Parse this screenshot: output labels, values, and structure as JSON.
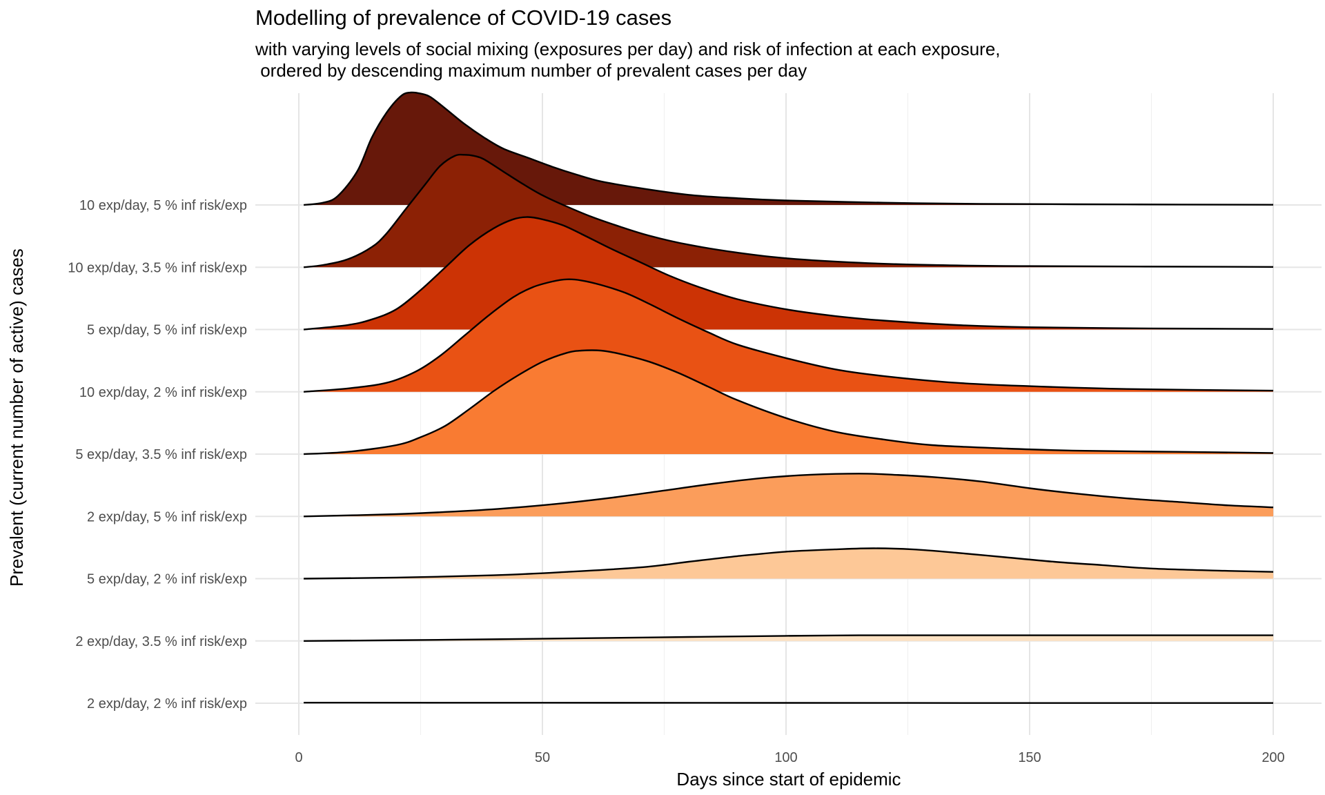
{
  "chart_data": {
    "type": "area",
    "title": "Modelling of prevalence of COVID-19 cases",
    "subtitle": "with varying levels of social mixing (exposures per day) and risk of infection at each exposure,\n ordered by descending maximum number of prevalent cases per day",
    "xlabel": "Days since start of epidemic",
    "ylabel": "Prevalent (current number of active) cases",
    "xlim": [
      0,
      200
    ],
    "x_ticks": [
      0,
      50,
      100,
      150,
      200
    ],
    "grid": true,
    "legend": "none",
    "series": [
      {
        "name": "10 exp/day, 5 % inf risk/exp",
        "color": "#67180a",
        "points": [
          [
            1,
            0
          ],
          [
            5,
            0.02
          ],
          [
            8,
            0.08
          ],
          [
            12,
            0.3
          ],
          [
            15,
            0.6
          ],
          [
            18,
            0.82
          ],
          [
            21,
            0.97
          ],
          [
            23,
            1.0
          ],
          [
            25,
            0.99
          ],
          [
            27,
            0.96
          ],
          [
            30,
            0.86
          ],
          [
            34,
            0.72
          ],
          [
            38,
            0.6
          ],
          [
            42,
            0.5
          ],
          [
            47,
            0.42
          ],
          [
            52,
            0.34
          ],
          [
            57,
            0.27
          ],
          [
            62,
            0.21
          ],
          [
            70,
            0.15
          ],
          [
            80,
            0.09
          ],
          [
            90,
            0.06
          ],
          [
            100,
            0.04
          ],
          [
            120,
            0.02
          ],
          [
            140,
            0.01
          ],
          [
            170,
            0.005
          ],
          [
            200,
            0.002
          ]
        ]
      },
      {
        "name": "10 exp/day, 3.5 % inf risk/exp",
        "color": "#8c2105",
        "points": [
          [
            1,
            0
          ],
          [
            5,
            0.02
          ],
          [
            10,
            0.07
          ],
          [
            15,
            0.18
          ],
          [
            18,
            0.3
          ],
          [
            22,
            0.52
          ],
          [
            26,
            0.74
          ],
          [
            29,
            0.9
          ],
          [
            32,
            0.99
          ],
          [
            34,
            1.0
          ],
          [
            36,
            0.99
          ],
          [
            38,
            0.96
          ],
          [
            42,
            0.85
          ],
          [
            46,
            0.74
          ],
          [
            50,
            0.64
          ],
          [
            55,
            0.54
          ],
          [
            60,
            0.45
          ],
          [
            66,
            0.36
          ],
          [
            72,
            0.28
          ],
          [
            80,
            0.2
          ],
          [
            90,
            0.13
          ],
          [
            100,
            0.08
          ],
          [
            115,
            0.04
          ],
          [
            130,
            0.02
          ],
          [
            150,
            0.01
          ],
          [
            200,
            0.003
          ]
        ]
      },
      {
        "name": "5 exp/day, 5 % inf risk/exp",
        "color": "#cc3305",
        "points": [
          [
            1,
            0
          ],
          [
            10,
            0.04
          ],
          [
            15,
            0.09
          ],
          [
            20,
            0.18
          ],
          [
            25,
            0.35
          ],
          [
            30,
            0.55
          ],
          [
            35,
            0.75
          ],
          [
            40,
            0.9
          ],
          [
            44,
            0.98
          ],
          [
            47,
            1.0
          ],
          [
            50,
            0.98
          ],
          [
            54,
            0.93
          ],
          [
            58,
            0.85
          ],
          [
            64,
            0.72
          ],
          [
            70,
            0.6
          ],
          [
            76,
            0.48
          ],
          [
            82,
            0.38
          ],
          [
            90,
            0.27
          ],
          [
            100,
            0.18
          ],
          [
            110,
            0.12
          ],
          [
            120,
            0.08
          ],
          [
            135,
            0.04
          ],
          [
            150,
            0.02
          ],
          [
            175,
            0.01
          ],
          [
            200,
            0.005
          ]
        ]
      },
      {
        "name": "10 exp/day, 2 % inf risk/exp",
        "color": "#e95214",
        "points": [
          [
            1,
            0
          ],
          [
            10,
            0.03
          ],
          [
            18,
            0.08
          ],
          [
            24,
            0.18
          ],
          [
            29,
            0.32
          ],
          [
            34,
            0.5
          ],
          [
            39,
            0.68
          ],
          [
            44,
            0.84
          ],
          [
            48,
            0.93
          ],
          [
            52,
            0.98
          ],
          [
            55,
            1.0
          ],
          [
            58,
            0.99
          ],
          [
            62,
            0.95
          ],
          [
            67,
            0.88
          ],
          [
            72,
            0.78
          ],
          [
            78,
            0.65
          ],
          [
            84,
            0.53
          ],
          [
            90,
            0.42
          ],
          [
            100,
            0.3
          ],
          [
            110,
            0.2
          ],
          [
            120,
            0.14
          ],
          [
            135,
            0.08
          ],
          [
            150,
            0.05
          ],
          [
            170,
            0.025
          ],
          [
            200,
            0.01
          ]
        ]
      },
      {
        "name": "5 exp/day, 3.5 % inf risk/exp",
        "color": "#f97b32",
        "points": [
          [
            1,
            0
          ],
          [
            10,
            0.02
          ],
          [
            20,
            0.08
          ],
          [
            25,
            0.15
          ],
          [
            30,
            0.25
          ],
          [
            35,
            0.4
          ],
          [
            40,
            0.56
          ],
          [
            45,
            0.7
          ],
          [
            50,
            0.82
          ],
          [
            55,
            0.9
          ],
          [
            58,
            0.92
          ],
          [
            62,
            0.92
          ],
          [
            66,
            0.89
          ],
          [
            72,
            0.82
          ],
          [
            78,
            0.72
          ],
          [
            84,
            0.6
          ],
          [
            90,
            0.48
          ],
          [
            100,
            0.32
          ],
          [
            110,
            0.2
          ],
          [
            120,
            0.13
          ],
          [
            130,
            0.08
          ],
          [
            145,
            0.05
          ],
          [
            160,
            0.03
          ],
          [
            180,
            0.02
          ],
          [
            200,
            0.01
          ]
        ]
      },
      {
        "name": "2 exp/day, 5 % inf risk/exp",
        "color": "#fb9d5b",
        "points": [
          [
            1,
            0
          ],
          [
            20,
            0.02
          ],
          [
            35,
            0.05
          ],
          [
            45,
            0.08
          ],
          [
            55,
            0.12
          ],
          [
            65,
            0.17
          ],
          [
            75,
            0.23
          ],
          [
            85,
            0.29
          ],
          [
            95,
            0.34
          ],
          [
            105,
            0.37
          ],
          [
            115,
            0.38
          ],
          [
            122,
            0.37
          ],
          [
            130,
            0.35
          ],
          [
            140,
            0.31
          ],
          [
            150,
            0.25
          ],
          [
            160,
            0.2
          ],
          [
            170,
            0.16
          ],
          [
            180,
            0.13
          ],
          [
            190,
            0.1
          ],
          [
            200,
            0.08
          ]
        ]
      },
      {
        "name": "5 exp/day, 2 % inf risk/exp",
        "color": "#fdc897",
        "points": [
          [
            1,
            0
          ],
          [
            20,
            0.01
          ],
          [
            40,
            0.03
          ],
          [
            55,
            0.06
          ],
          [
            70,
            0.1
          ],
          [
            80,
            0.15
          ],
          [
            90,
            0.2
          ],
          [
            100,
            0.24
          ],
          [
            110,
            0.26
          ],
          [
            118,
            0.27
          ],
          [
            126,
            0.26
          ],
          [
            135,
            0.23
          ],
          [
            145,
            0.19
          ],
          [
            155,
            0.15
          ],
          [
            165,
            0.12
          ],
          [
            175,
            0.09
          ],
          [
            190,
            0.07
          ],
          [
            200,
            0.06
          ]
        ]
      },
      {
        "name": "2 exp/day, 3.5 % inf risk/exp",
        "color": "#fde1c2",
        "points": [
          [
            1,
            0
          ],
          [
            30,
            0.01
          ],
          [
            60,
            0.025
          ],
          [
            80,
            0.035
          ],
          [
            100,
            0.045
          ],
          [
            115,
            0.05
          ],
          [
            130,
            0.05
          ],
          [
            150,
            0.05
          ],
          [
            170,
            0.05
          ],
          [
            185,
            0.05
          ],
          [
            200,
            0.05
          ]
        ]
      },
      {
        "name": "2 exp/day, 2 % inf risk/exp",
        "color": "#fff3e6",
        "points": [
          [
            1,
            0.005
          ],
          [
            50,
            0.004
          ],
          [
            100,
            0.003
          ],
          [
            150,
            0.002
          ],
          [
            200,
            0.002
          ]
        ]
      }
    ]
  }
}
